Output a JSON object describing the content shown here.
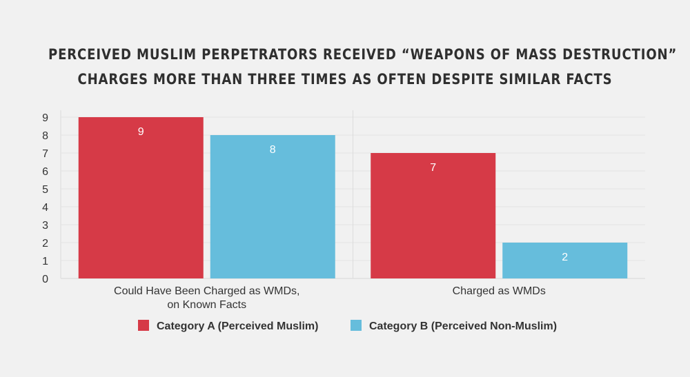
{
  "chart_data": {
    "type": "bar",
    "title_lines": [
      "PERCEIVED MUSLIM PERPETRATORS RECEIVED “WEAPONS OF MASS DESTRUCTION”",
      "CHARGES MORE THAN THREE TIMES AS OFTEN DESPITE SIMILAR FACTS"
    ],
    "categories": [
      [
        "Could Have Been Charged as WMDs,",
        "on Known Facts"
      ],
      [
        "Charged as WMDs"
      ]
    ],
    "series": [
      {
        "name": "Category A (Perceived Muslim)",
        "color": "#d63a47",
        "values": [
          9,
          7
        ]
      },
      {
        "name": "Category B (Perceived Non-Muslim)",
        "color": "#66bddc",
        "values": [
          8,
          2
        ]
      }
    ],
    "yticks": [
      0,
      1,
      2,
      3,
      4,
      5,
      6,
      7,
      8,
      9
    ],
    "ylim": [
      0,
      9
    ],
    "grid": true,
    "legend_position": "bottom",
    "data_labels": true
  }
}
